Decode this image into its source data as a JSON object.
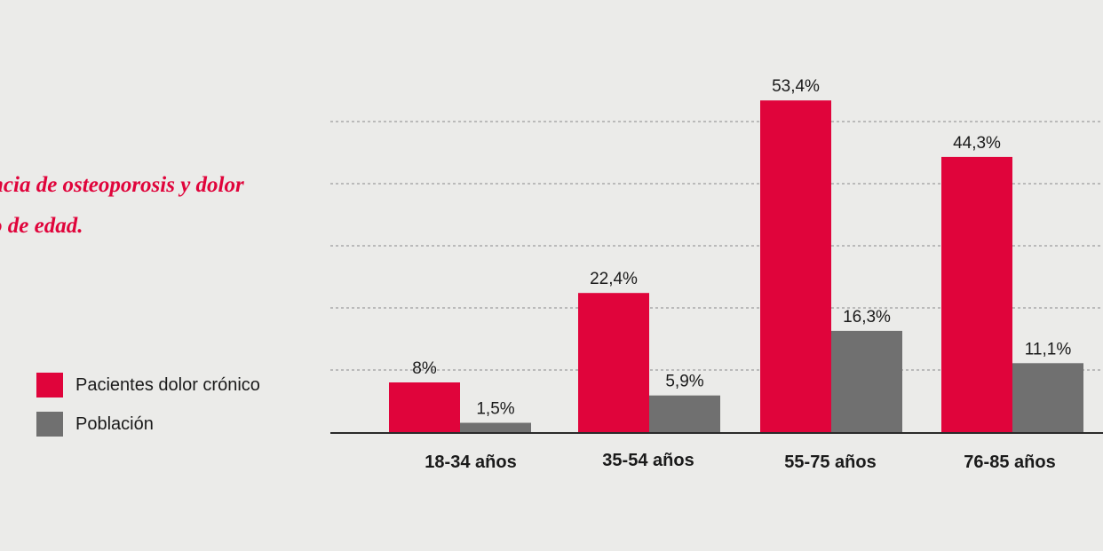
{
  "chart_data": {
    "type": "bar",
    "title_lines": [
      "ncia de osteoporosis y dolor",
      "o de edad."
    ],
    "categories": [
      "18-34 años",
      "35-54 años",
      "55-75 años",
      "76-85 años"
    ],
    "series": [
      {
        "name": "Pacientes dolor crónico",
        "color": "#e0043b",
        "values": [
          8,
          22.4,
          53.4,
          44.3
        ],
        "labels": [
          "8%",
          "22,4%",
          "53,4%",
          "44,3%"
        ]
      },
      {
        "name": "Población",
        "color": "#707070",
        "values": [
          1.5,
          5.9,
          16.3,
          11.1
        ],
        "labels": [
          "1,5%",
          "5,9%",
          "16,3%",
          "11,1%"
        ]
      }
    ],
    "ylim": [
      0,
      55
    ],
    "grid": true,
    "legend_position": "left"
  }
}
